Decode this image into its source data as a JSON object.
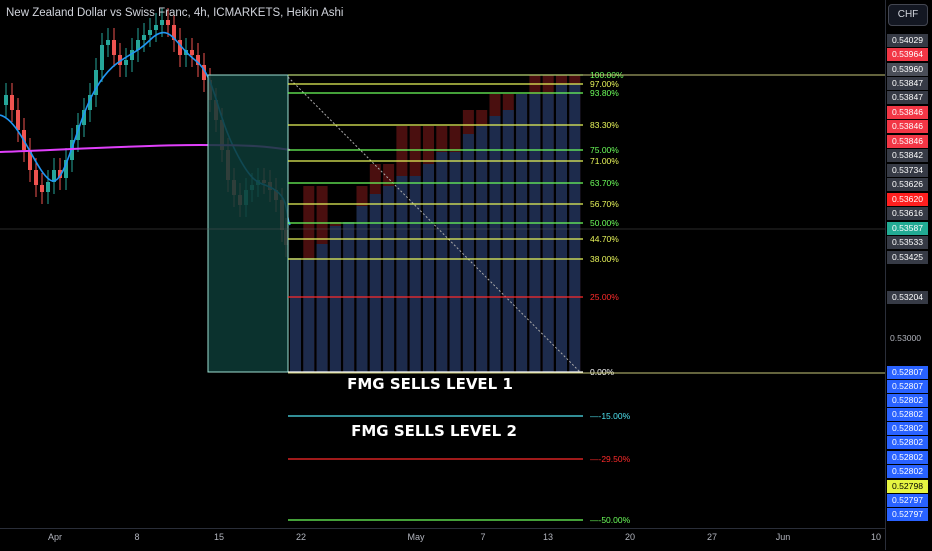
{
  "header": {
    "title": "New Zealand Dollar vs Swiss Franc, 4h, ICMARKETS, Heikin Ashi",
    "currency_button": "CHF"
  },
  "colors": {
    "bull": "#26a69a",
    "bear": "#ef5350",
    "ema_fast": "#2196f3",
    "ema_slow": "#e040fb",
    "box_fill": "#0d3b36",
    "bar_blue": "#1d2b4c",
    "bar_red": "#4a0f0f"
  },
  "fib_levels": [
    {
      "label": "100.00%",
      "color": "#6cff5b"
    },
    {
      "label": "97.00%",
      "color": "#e8f55a"
    },
    {
      "label": "93.80%",
      "color": "#6cff5b"
    },
    {
      "label": "83.30%",
      "color": "#e8f55a"
    },
    {
      "label": "75.00%",
      "color": "#6cff5b"
    },
    {
      "label": "71.00%",
      "color": "#e8f55a"
    },
    {
      "label": "63.70%",
      "color": "#6cff5b"
    },
    {
      "label": "56.70%",
      "color": "#e8f55a"
    },
    {
      "label": "50.00%",
      "color": "#6cff5b"
    },
    {
      "label": "44.70%",
      "color": "#e8f55a"
    },
    {
      "label": "38.00%",
      "color": "#e8f55a"
    },
    {
      "label": "25.00%",
      "color": "#ff2b2b"
    },
    {
      "label": "0.00%",
      "color": "#ffffff"
    },
    {
      "label": "-15.00%",
      "color": "#4fe3f0"
    },
    {
      "label": "-29.50%",
      "color": "#ff2b2b"
    },
    {
      "label": "-50.00%",
      "color": "#6cff5b"
    }
  ],
  "annotations": {
    "level1": "FMG SELLS LEVEL 1",
    "level2": "FMG SELLS LEVEL 2"
  },
  "price_badges": [
    {
      "text": "0.54029",
      "bg": "#363a45"
    },
    {
      "text": "0.53964",
      "bg": "#f23645"
    },
    {
      "text": "0.53960",
      "bg": "#4a4e58"
    },
    {
      "text": "0.53847",
      "bg": "#363a45"
    },
    {
      "text": "0.53847",
      "bg": "#363a45"
    },
    {
      "text": "0.53846",
      "bg": "#f23645"
    },
    {
      "text": "0.53846",
      "bg": "#f23645"
    },
    {
      "text": "0.53846",
      "bg": "#f23645"
    },
    {
      "text": "0.53842",
      "bg": "#363a45"
    },
    {
      "text": "0.53734",
      "bg": "#363a45"
    },
    {
      "text": "0.53626",
      "bg": "#363a45"
    },
    {
      "text": "0.53620",
      "bg": "#ff1f1f"
    },
    {
      "text": "0.53616",
      "bg": "#363a45"
    },
    {
      "text": "0.53587",
      "bg": "#22ab94"
    },
    {
      "text": "0.53533",
      "bg": "#363a45"
    },
    {
      "text": "0.53425",
      "bg": "#363a45"
    },
    {
      "text": "0.53204",
      "bg": "#363a45"
    }
  ],
  "price_ticks": [
    "0.53000"
  ],
  "low_badges": [
    {
      "text": "0.52807",
      "bg": "#2962ff"
    },
    {
      "text": "0.52807",
      "bg": "#2962ff"
    },
    {
      "text": "0.52802",
      "bg": "#2962ff"
    },
    {
      "text": "0.52802",
      "bg": "#2962ff"
    },
    {
      "text": "0.52802",
      "bg": "#2962ff"
    },
    {
      "text": "0.52802",
      "bg": "#2962ff"
    },
    {
      "text": "0.52802",
      "bg": "#2962ff"
    },
    {
      "text": "0.52802",
      "bg": "#2962ff"
    },
    {
      "text": "0.52798",
      "bg": "#e6f542",
      "fg": "#000"
    },
    {
      "text": "0.52797",
      "bg": "#2962ff"
    },
    {
      "text": "0.52797",
      "bg": "#2962ff"
    }
  ],
  "time_axis": [
    "Apr",
    "8",
    "15",
    "22",
    "May",
    "7",
    "13",
    "20",
    "27",
    "Jun",
    "10"
  ]
}
